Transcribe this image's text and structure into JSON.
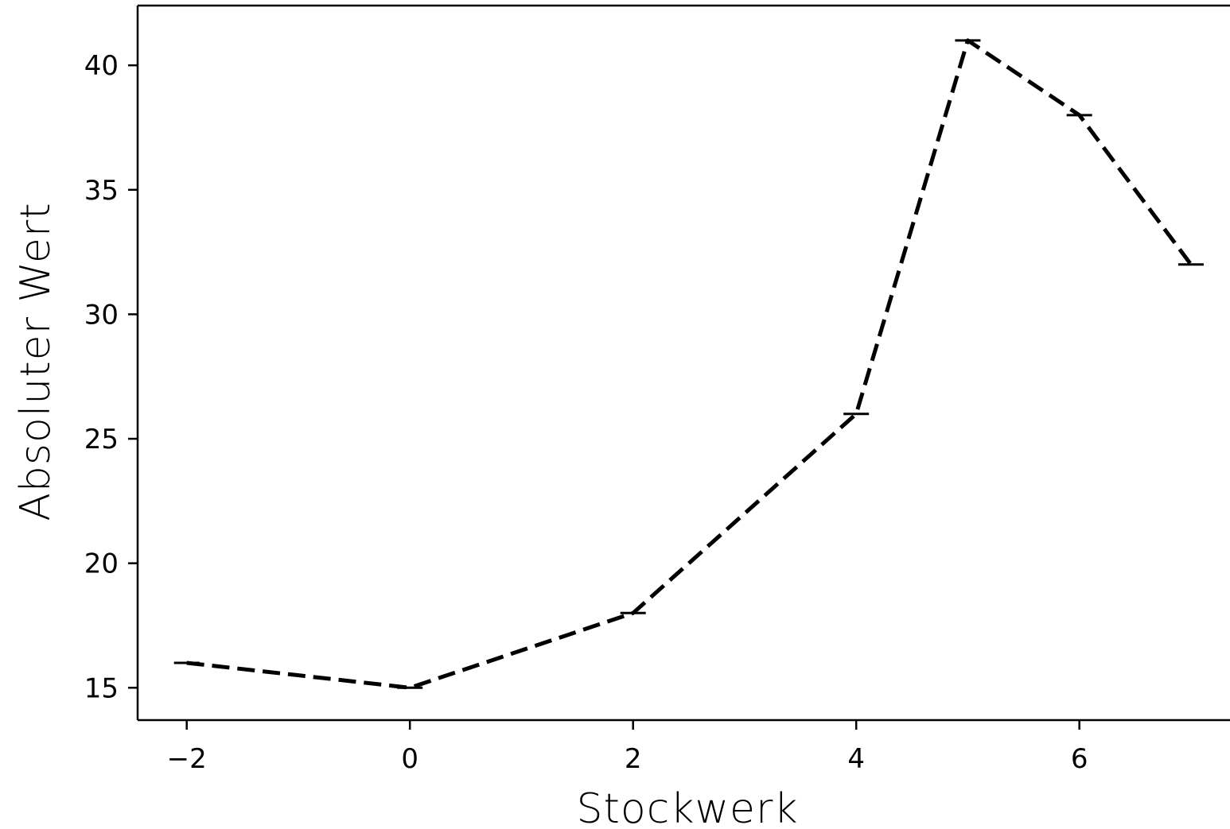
{
  "chart_data": {
    "type": "line",
    "title": "",
    "xlabel": "Stockwerk",
    "ylabel": "Absoluter Wert",
    "x": [
      -2,
      0,
      2,
      4,
      5,
      6,
      7
    ],
    "series": [
      {
        "values": [
          16,
          15,
          18,
          26,
          41,
          38,
          32
        ]
      }
    ],
    "xlim": [
      -2.44,
      7.35
    ],
    "ylim": [
      13.7,
      42.4
    ],
    "xticks": [
      -2,
      0,
      2,
      4,
      6
    ],
    "xtick_labels": [
      "−2",
      "0",
      "2",
      "4",
      "6"
    ],
    "yticks": [
      15,
      20,
      25,
      30,
      35,
      40
    ],
    "ytick_labels": [
      "15",
      "20",
      "25",
      "30",
      "35",
      "40"
    ],
    "line_style": "dashed",
    "line_color": "#000000",
    "error_caps": true,
    "grid": false,
    "legend": "none"
  }
}
